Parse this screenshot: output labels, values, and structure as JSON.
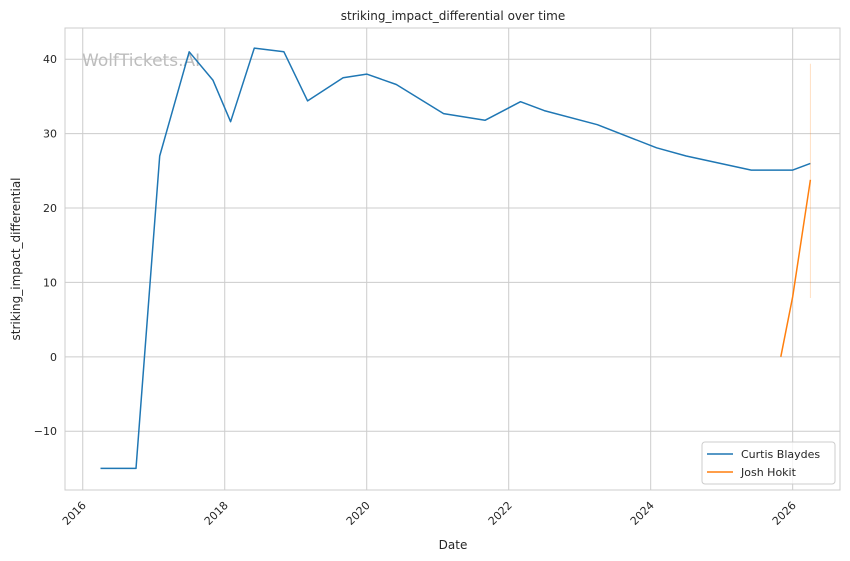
{
  "chart_data": {
    "type": "line",
    "title": "striking_impact_differential over time",
    "xlabel": "Date",
    "ylabel": "striking_impact_differential",
    "xlim": [
      "2015-10",
      "2026-09"
    ],
    "ylim": [
      -17.9,
      44.2
    ],
    "x_ticks": [
      "2016",
      "2018",
      "2020",
      "2022",
      "2024",
      "2026"
    ],
    "y_ticks": [
      -10,
      0,
      10,
      20,
      30,
      40
    ],
    "grid": true,
    "legend_position": "lower-right",
    "watermark": "WolfTickets.AI",
    "series": [
      {
        "name": "Curtis Blaydes",
        "color": "#1f77b4",
        "x": [
          "2016-04",
          "2016-10",
          "2017-02",
          "2017-07",
          "2017-11",
          "2018-02",
          "2018-06",
          "2018-11",
          "2019-03",
          "2019-09",
          "2020-01",
          "2020-06",
          "2021-02",
          "2021-09",
          "2022-03",
          "2022-07",
          "2023-04",
          "2024-02",
          "2024-07",
          "2025-06",
          "2026-01",
          "2026-04"
        ],
        "y": [
          -15,
          -15,
          27.0,
          41.0,
          37.2,
          31.6,
          41.5,
          41.0,
          34.4,
          37.5,
          38.0,
          36.6,
          32.7,
          31.8,
          34.3,
          33.1,
          31.2,
          28.1,
          27.0,
          25.1,
          25.1,
          26.0
        ]
      },
      {
        "name": "Josh Hokit",
        "color": "#ff7f0e",
        "x": [
          "2025-11",
          "2026-01",
          "2026-04"
        ],
        "y": [
          0,
          8.1,
          23.8
        ],
        "interval": {
          "x": "2026-04",
          "low": 7.9,
          "high": 39.4
        }
      }
    ]
  }
}
